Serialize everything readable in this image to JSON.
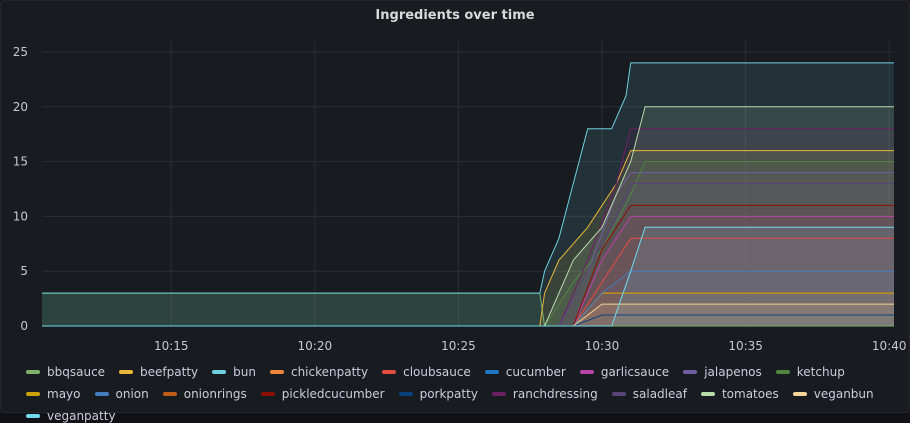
{
  "panel": {
    "title": "Ingredients over time"
  },
  "chart_data": {
    "type": "area",
    "title": "Ingredients over time",
    "x_ticks": [
      "10:15",
      "10:20",
      "10:25",
      "10:30",
      "10:35",
      "10:40"
    ],
    "xlim": [
      "10:10:30",
      "10:40:10"
    ],
    "ylim": [
      0,
      26
    ],
    "y_ticks": [
      0,
      5,
      10,
      15,
      20,
      25
    ],
    "grid": true,
    "legend_position": "bottom",
    "series": [
      {
        "name": "bbqsauce",
        "color": "#7eb26d",
        "x": [
          "10:10:30",
          "10:27:50",
          "10:28:00",
          "10:29:00",
          "10:30:00",
          "10:31:00",
          "10:40:10"
        ],
        "values": [
          3,
          3,
          0,
          0,
          0,
          0,
          0
        ]
      },
      {
        "name": "beefpatty",
        "color": "#eab839",
        "x": [
          "10:10:30",
          "10:27:50",
          "10:28:00",
          "10:28:30",
          "10:29:30",
          "10:30:30",
          "10:31:00",
          "10:40:10"
        ],
        "values": [
          0,
          0,
          3,
          6,
          9,
          13,
          16,
          16
        ]
      },
      {
        "name": "bun",
        "color": "#6ed0e0",
        "x": [
          "10:10:30",
          "10:27:50",
          "10:28:00",
          "10:28:30",
          "10:29:00",
          "10:29:30",
          "10:30:20",
          "10:30:50",
          "10:31:00",
          "10:40:10"
        ],
        "values": [
          3,
          3,
          5,
          8,
          13,
          18,
          18,
          21,
          24,
          24
        ]
      },
      {
        "name": "chickenpatty",
        "color": "#ef843c",
        "x": [
          "10:10:30",
          "10:29:00",
          "10:30:00",
          "10:40:10"
        ],
        "values": [
          0,
          0,
          3,
          3
        ]
      },
      {
        "name": "cloubsauce",
        "color": "#e24d42",
        "x": [
          "10:10:30",
          "10:29:00",
          "10:30:00",
          "10:31:00",
          "10:40:10"
        ],
        "values": [
          0,
          0,
          4,
          8,
          8
        ]
      },
      {
        "name": "cucumber",
        "color": "#1f78c1",
        "x": [
          "10:10:30",
          "10:29:00",
          "10:30:00",
          "10:40:10"
        ],
        "values": [
          0,
          0,
          2,
          2
        ]
      },
      {
        "name": "garlicsauce",
        "color": "#ba43a9",
        "x": [
          "10:10:30",
          "10:29:00",
          "10:30:00",
          "10:31:00",
          "10:40:10"
        ],
        "values": [
          0,
          0,
          6,
          10,
          10
        ]
      },
      {
        "name": "jalapenos",
        "color": "#705da0",
        "x": [
          "10:10:30",
          "10:28:30",
          "10:29:30",
          "10:30:30",
          "10:31:00",
          "10:40:10"
        ],
        "values": [
          0,
          0,
          5,
          12,
          14,
          14
        ]
      },
      {
        "name": "ketchup",
        "color": "#508642",
        "x": [
          "10:10:30",
          "10:28:00",
          "10:29:00",
          "10:30:00",
          "10:31:00",
          "10:31:30",
          "10:40:10"
        ],
        "values": [
          0,
          0,
          4,
          7,
          12,
          15,
          15
        ]
      },
      {
        "name": "mayo",
        "color": "#cca300",
        "x": [
          "10:10:30",
          "10:29:00",
          "10:30:00",
          "10:40:10"
        ],
        "values": [
          0,
          0,
          3,
          3
        ]
      },
      {
        "name": "onion",
        "color": "#447ebc",
        "x": [
          "10:10:30",
          "10:29:00",
          "10:30:00",
          "10:31:00",
          "10:40:10"
        ],
        "values": [
          0,
          0,
          3,
          5,
          5
        ]
      },
      {
        "name": "onionrings",
        "color": "#c15c17",
        "x": [
          "10:10:30",
          "10:29:00",
          "10:30:00",
          "10:40:10"
        ],
        "values": [
          0,
          0,
          2,
          2
        ]
      },
      {
        "name": "pickledcucumber",
        "color": "#890f02",
        "x": [
          "10:10:30",
          "10:29:00",
          "10:30:00",
          "10:31:00",
          "10:40:10"
        ],
        "values": [
          0,
          0,
          7,
          11,
          11
        ]
      },
      {
        "name": "porkpatty",
        "color": "#0a437c",
        "x": [
          "10:10:30",
          "10:29:00",
          "10:30:00",
          "10:40:10"
        ],
        "values": [
          0,
          0,
          1,
          1
        ]
      },
      {
        "name": "ranchdressing",
        "color": "#6d1f62",
        "x": [
          "10:10:30",
          "10:28:30",
          "10:29:30",
          "10:30:30",
          "10:31:00",
          "10:40:10"
        ],
        "values": [
          0,
          0,
          6,
          13,
          18,
          18
        ]
      },
      {
        "name": "saladleaf",
        "color": "#584477",
        "x": [
          "10:10:30",
          "10:28:30",
          "10:29:30",
          "10:30:30",
          "10:31:00",
          "10:40:10"
        ],
        "values": [
          0,
          0,
          5,
          10,
          13,
          13
        ]
      },
      {
        "name": "tomatoes",
        "color": "#b7dbab",
        "x": [
          "10:10:30",
          "10:28:00",
          "10:29:00",
          "10:30:00",
          "10:31:00",
          "10:31:30",
          "10:40:10"
        ],
        "values": [
          0,
          0,
          6,
          9,
          15,
          20,
          20
        ]
      },
      {
        "name": "veganbun",
        "color": "#f4d598",
        "x": [
          "10:10:30",
          "10:29:00",
          "10:30:00",
          "10:40:10"
        ],
        "values": [
          0,
          0,
          2,
          2
        ]
      },
      {
        "name": "veganpatty",
        "color": "#70dbed",
        "x": [
          "10:10:30",
          "10:30:20",
          "10:31:00",
          "10:31:30",
          "10:40:10"
        ],
        "values": [
          0,
          0,
          5,
          9,
          9
        ]
      }
    ]
  }
}
